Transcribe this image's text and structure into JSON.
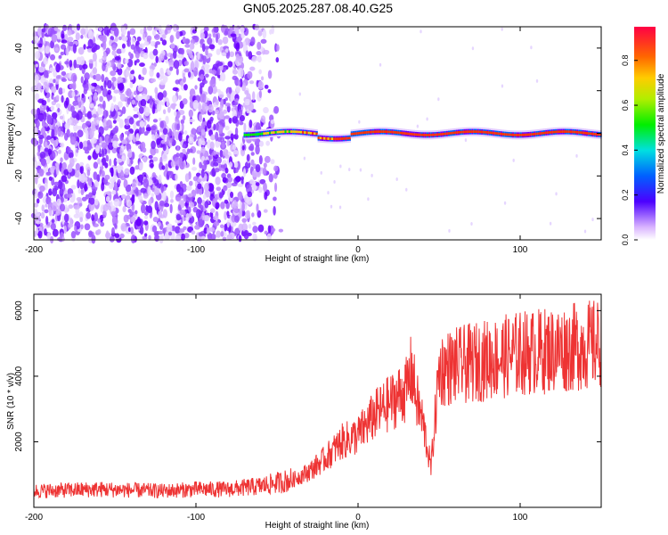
{
  "title": "GN05.2025.287.08.40.G25",
  "chart_data": [
    {
      "type": "heatmap",
      "name": "spectrogram",
      "xlabel": "Height of straight line (km)",
      "ylabel": "Frequency (Hz)",
      "xlim": [
        -200,
        150
      ],
      "ylim": [
        -50,
        50
      ],
      "xticks": [
        -200,
        -100,
        0,
        100
      ],
      "yticks": [
        -40,
        -20,
        0,
        20,
        40
      ],
      "signal_band": {
        "center_hz": 0,
        "start_km": -70,
        "end_km": 150
      },
      "noise_region_km": [
        -200,
        -45
      ]
    },
    {
      "type": "line",
      "name": "snr",
      "xlabel": "Height of straight line (km)",
      "ylabel": "SNR (10 * v/v)",
      "xlim": [
        -200,
        150
      ],
      "ylim": [
        0,
        6500
      ],
      "xticks": [
        -200,
        -100,
        0,
        100
      ],
      "yticks": [
        2000,
        4000,
        6000
      ],
      "color": "#ee3333",
      "trend": {
        "x": [
          -200,
          -160,
          -120,
          -100,
          -80,
          -60,
          -40,
          -30,
          -20,
          -10,
          0,
          10,
          20,
          30,
          33,
          36,
          40,
          45,
          50,
          60,
          80,
          100,
          120,
          150
        ],
        "y": [
          500,
          550,
          500,
          550,
          550,
          650,
          850,
          1100,
          1500,
          2000,
          2200,
          2800,
          3200,
          3600,
          4200,
          3300,
          2600,
          1200,
          4200,
          4300,
          4500,
          4700,
          4800,
          5000
        ]
      }
    },
    {
      "type": "colorbar",
      "label": "Normalized spectral amplitude",
      "ticks": [
        "0.0",
        "0.2",
        "0.4",
        "0.6",
        "0.8"
      ],
      "range": [
        0,
        0.95
      ]
    }
  ]
}
